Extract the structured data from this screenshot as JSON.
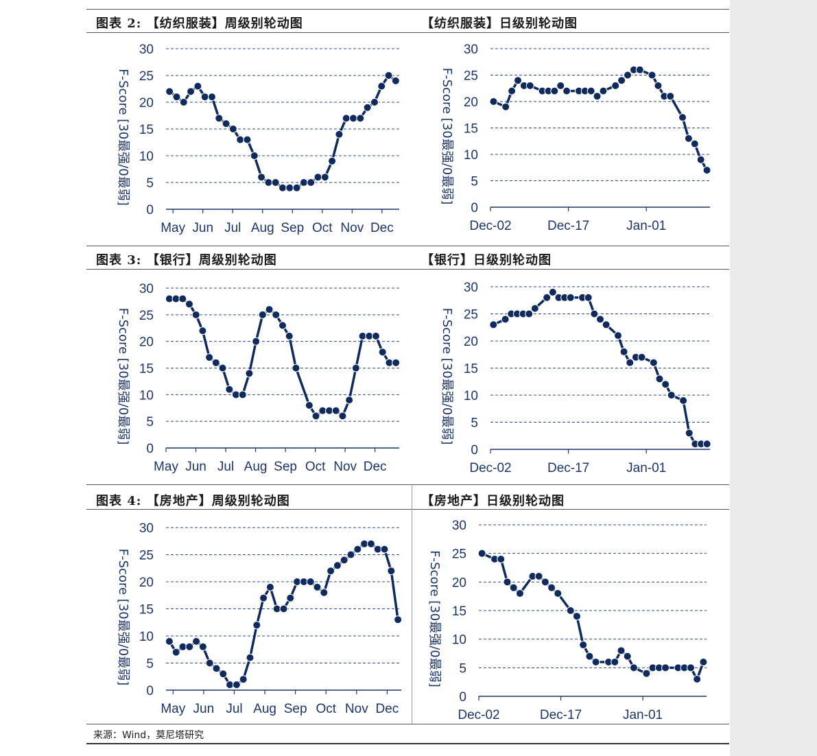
{
  "titles": {
    "t1": "图表 2: 【纺织服装】周级别轮动图",
    "t2": "【纺织服装】日级别轮动图",
    "t3": "图表 3: 【银行】周级别轮动图",
    "t4": "【银行】日级别轮动图",
    "t5": "图表 4: 【房地产】周级别轮动图",
    "t6": "【房地产】日级别轮动图"
  },
  "source": "来源：Wind，莫尼塔研究",
  "colors": {
    "line": "#0f2a5c",
    "marker": "#0f2a5c",
    "grid": "#2a4a86",
    "axis": "#1d3566"
  },
  "chart_data": [
    {
      "type": "line",
      "title": "图表 2: 【纺织服装】周级别轮动图",
      "ylabel": "F-Score [30最强/0最弱]",
      "ylim": [
        0,
        30
      ],
      "yticks": [
        0,
        5,
        10,
        15,
        20,
        25,
        30
      ],
      "xlabel": "",
      "xticks": [
        "May",
        "Jun",
        "Jul",
        "Aug",
        "Sep",
        "Oct",
        "Nov",
        "Dec"
      ],
      "grid": "horizontal dashed",
      "values": [
        22,
        21,
        20,
        22,
        23,
        21,
        21,
        17,
        16,
        15,
        13,
        13,
        10,
        6,
        5,
        5,
        4,
        4,
        4,
        5,
        5,
        6,
        6,
        9,
        14,
        17,
        17,
        17,
        19,
        20,
        23,
        25,
        24
      ]
    },
    {
      "type": "line",
      "title": "【纺织服装】日级别轮动图",
      "ylabel": "F-Score [30最强/0最弱]",
      "ylim": [
        0,
        30
      ],
      "yticks": [
        0,
        5,
        10,
        15,
        20,
        25,
        30
      ],
      "xlabel": "",
      "xticks": [
        "Dec-02",
        "Dec-17",
        "Jan-01"
      ],
      "grid": "horizontal dashed",
      "values": [
        20,
        null,
        19,
        22,
        24,
        23,
        23,
        null,
        22,
        22,
        22,
        23,
        22,
        null,
        22,
        22,
        22,
        21,
        22,
        null,
        23,
        24,
        25,
        26,
        26,
        null,
        25,
        23,
        21,
        21,
        null,
        17,
        13,
        12,
        9,
        7
      ]
    },
    {
      "type": "line",
      "title": "图表 3: 【银行】周级别轮动图",
      "ylabel": "F-Score [30最强/0最弱]",
      "ylim": [
        0,
        30
      ],
      "yticks": [
        0,
        5,
        10,
        15,
        20,
        25,
        30
      ],
      "xlabel": "",
      "xticks": [
        "May",
        "Jun",
        "Jul",
        "Aug",
        "Sep",
        "Oct",
        "Nov",
        "Dec"
      ],
      "grid": "horizontal dashed",
      "values": [
        28,
        28,
        28,
        27,
        25,
        22,
        17,
        16,
        15,
        11,
        10,
        10,
        14,
        20,
        25,
        26,
        25,
        23,
        21,
        15,
        null,
        8,
        6,
        7,
        7,
        7,
        6,
        9,
        15,
        21,
        21,
        21,
        18,
        16,
        16
      ]
    },
    {
      "type": "line",
      "title": "【银行】日级别轮动图",
      "ylabel": "F-Score [30最强/0最弱]",
      "ylim": [
        0,
        30
      ],
      "yticks": [
        0,
        5,
        10,
        15,
        20,
        25,
        30
      ],
      "xlabel": "",
      "xticks": [
        "Dec-02",
        "Dec-17",
        "Jan-01"
      ],
      "grid": "horizontal dashed",
      "values": [
        23,
        null,
        24,
        25,
        25,
        25,
        25,
        26,
        null,
        28,
        29,
        28,
        28,
        28,
        null,
        28,
        28,
        25,
        24,
        23,
        null,
        21,
        18,
        16,
        17,
        17,
        null,
        16,
        13,
        12,
        10,
        null,
        9,
        3,
        1,
        1,
        1
      ]
    },
    {
      "type": "line",
      "title": "图表 4: 【房地产】周级别轮动图",
      "ylabel": "F-Score [30最强/0最弱]",
      "ylim": [
        0,
        30
      ],
      "yticks": [
        0,
        5,
        10,
        15,
        20,
        25,
        30
      ],
      "xlabel": "",
      "xticks": [
        "May",
        "Jun",
        "Jul",
        "Aug",
        "Sep",
        "Oct",
        "Nov",
        "Dec"
      ],
      "grid": "horizontal dashed",
      "values": [
        9,
        7,
        8,
        8,
        9,
        8,
        5,
        4,
        3,
        1,
        1,
        2,
        6,
        12,
        17,
        19,
        15,
        15,
        17,
        20,
        20,
        20,
        19,
        18,
        22,
        23,
        24,
        25,
        26,
        27,
        27,
        26,
        26,
        22,
        13
      ]
    },
    {
      "type": "line",
      "title": "【房地产】日级别轮动图",
      "ylabel": "F-Score [30最强/0最弱]",
      "ylim": [
        0,
        30
      ],
      "yticks": [
        0,
        5,
        10,
        15,
        20,
        25,
        30
      ],
      "xlabel": "",
      "xticks": [
        "Dec-02",
        "Dec-17",
        "Jan-01"
      ],
      "grid": "horizontal dashed",
      "values": [
        25,
        null,
        24,
        24,
        20,
        19,
        18,
        null,
        21,
        21,
        20,
        19,
        18,
        null,
        15,
        14,
        9,
        7,
        6,
        null,
        6,
        6,
        8,
        7,
        5,
        null,
        4,
        5,
        5,
        5,
        null,
        5,
        5,
        5,
        3,
        6
      ]
    }
  ]
}
